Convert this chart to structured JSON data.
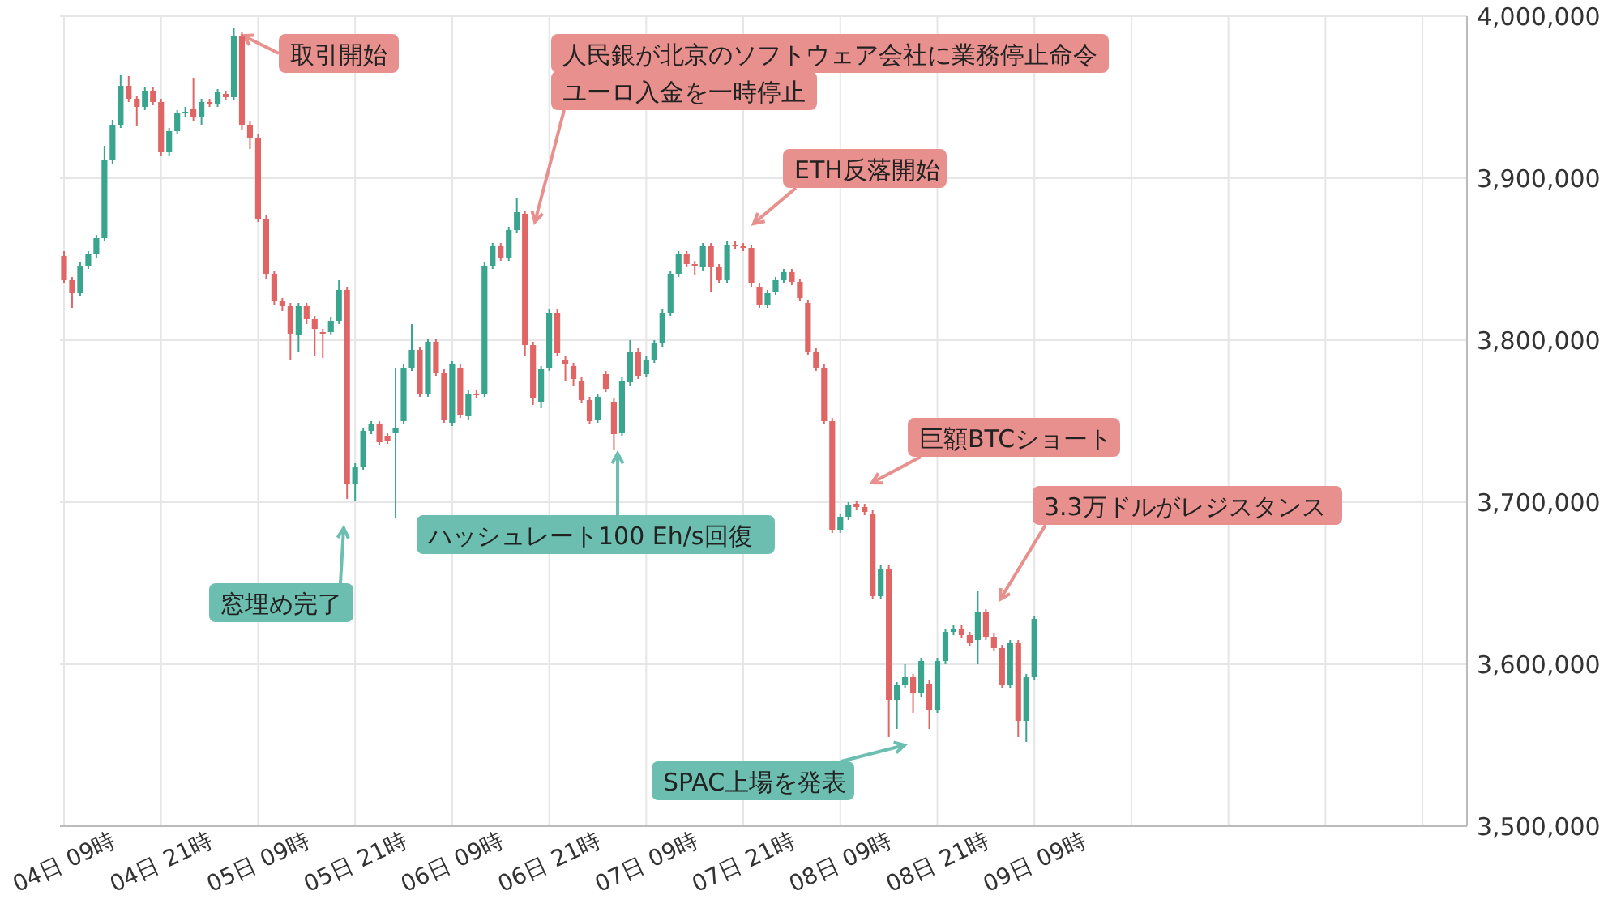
{
  "chart_data": {
    "type": "candlestick",
    "categories": [
      "04日 09時",
      null,
      null,
      null,
      null,
      null,
      null,
      null,
      null,
      null,
      null,
      null,
      "04日 21時",
      null,
      null,
      null,
      null,
      null,
      null,
      null,
      null,
      null,
      null,
      null,
      "05日 09時",
      null,
      null,
      null,
      null,
      null,
      null,
      null,
      null,
      null,
      null,
      null,
      "05日 21時",
      null,
      null,
      null,
      null,
      null,
      null,
      null,
      null,
      null,
      null,
      null,
      "06日 09時",
      null,
      null,
      null,
      null,
      null,
      null,
      null,
      null,
      null,
      null,
      null,
      "06日 21時",
      null,
      null,
      null,
      null,
      null,
      null,
      null,
      null,
      null,
      null,
      null,
      "07日 09時",
      null,
      null,
      null,
      null,
      null,
      null,
      null,
      null,
      null,
      null,
      null,
      "07日 21時",
      null,
      null,
      null,
      null,
      null,
      null,
      null,
      null,
      null,
      null,
      null,
      "08日 09時",
      null,
      null,
      null,
      null,
      null,
      null,
      null,
      null,
      null,
      null,
      null,
      "08日 21時",
      null,
      null,
      null,
      null,
      null,
      null,
      null,
      null,
      null,
      null,
      null,
      "09日 09時",
      null,
      null,
      null,
      null,
      null,
      null,
      null,
      null,
      null,
      null,
      null,
      null,
      null,
      null,
      null,
      null,
      null,
      null,
      null,
      null,
      null,
      null,
      null,
      null,
      null,
      null,
      null,
      null,
      null,
      null,
      null,
      null,
      null,
      null,
      null,
      null,
      null,
      null,
      null,
      null,
      null,
      null,
      null,
      null,
      null,
      null,
      null,
      null,
      null,
      null,
      null,
      null,
      null
    ],
    "ohlc": [
      [
        3852000,
        3855000,
        3835000,
        3837000
      ],
      [
        3837000,
        3839000,
        3820000,
        3829000
      ],
      [
        3829000,
        3848000,
        3827000,
        3846000
      ],
      [
        3846000,
        3855000,
        3844000,
        3853000
      ],
      [
        3853000,
        3865000,
        3851000,
        3863000
      ],
      [
        3863000,
        3920000,
        3861000,
        3911000
      ],
      [
        3911000,
        3936000,
        3909000,
        3933000
      ],
      [
        3933000,
        3964000,
        3931000,
        3957000
      ],
      [
        3957000,
        3963000,
        3947000,
        3949000
      ],
      [
        3949000,
        3951000,
        3932000,
        3944000
      ],
      [
        3944000,
        3956000,
        3942000,
        3954000
      ],
      [
        3954000,
        3956000,
        3945000,
        3947000
      ],
      [
        3947000,
        3949000,
        3914000,
        3916000
      ],
      [
        3916000,
        3931000,
        3914000,
        3929000
      ],
      [
        3929000,
        3942000,
        3927000,
        3940000
      ],
      [
        3940000,
        3944000,
        3938000,
        3941000
      ],
      [
        3943000,
        3962000,
        3935000,
        3938000
      ],
      [
        3938000,
        3949000,
        3933000,
        3947000
      ],
      [
        3947000,
        3949000,
        3944000,
        3946000
      ],
      [
        3946000,
        3955000,
        3944000,
        3953000
      ],
      [
        3952000,
        3954000,
        3948000,
        3950000
      ],
      [
        3950000,
        3993000,
        3948000,
        3988000
      ],
      [
        3988000,
        3990000,
        3930000,
        3933000
      ],
      [
        3933000,
        3935000,
        3918000,
        3925000
      ],
      [
        3925000,
        3927000,
        3873000,
        3875000
      ],
      [
        3875000,
        3877000,
        3838000,
        3841000
      ],
      [
        3841000,
        3843000,
        3822000,
        3824000
      ],
      [
        3824000,
        3826000,
        3818000,
        3821000
      ],
      [
        3821000,
        3823000,
        3788000,
        3804000
      ],
      [
        3803000,
        3823000,
        3793000,
        3821000
      ],
      [
        3821000,
        3823000,
        3810000,
        3813000
      ],
      [
        3813000,
        3815000,
        3790000,
        3807000
      ],
      [
        3805000,
        3807000,
        3789000,
        3804000
      ],
      [
        3805000,
        3814000,
        3803000,
        3812000
      ],
      [
        3812000,
        3837000,
        3810000,
        3831000
      ],
      [
        3831000,
        3833000,
        3702000,
        3711000
      ],
      [
        3711000,
        3724000,
        3701000,
        3722000
      ],
      [
        3722000,
        3746000,
        3720000,
        3744000
      ],
      [
        3744000,
        3750000,
        3742000,
        3748000
      ],
      [
        3748000,
        3750000,
        3735000,
        3737000
      ],
      [
        3741000,
        3743000,
        3736000,
        3738000
      ],
      [
        3743000,
        3783000,
        3690000,
        3746000
      ],
      [
        3750000,
        3785000,
        3748000,
        3783000
      ],
      [
        3783000,
        3810000,
        3781000,
        3794000
      ],
      [
        3794000,
        3796000,
        3765000,
        3767000
      ],
      [
        3767000,
        3801000,
        3765000,
        3799000
      ],
      [
        3799000,
        3801000,
        3778000,
        3780000
      ],
      [
        3780000,
        3782000,
        3749000,
        3751000
      ],
      [
        3749000,
        3787000,
        3747000,
        3785000
      ],
      [
        3783000,
        3785000,
        3752000,
        3754000
      ],
      [
        3753000,
        3769000,
        3751000,
        3767000
      ],
      [
        3767000,
        3769000,
        3764000,
        3766000
      ],
      [
        3767000,
        3848000,
        3765000,
        3846000
      ],
      [
        3846000,
        3860000,
        3844000,
        3858000
      ],
      [
        3858000,
        3860000,
        3849000,
        3851000
      ],
      [
        3851000,
        3870000,
        3849000,
        3868000
      ],
      [
        3868000,
        3888000,
        3866000,
        3879000
      ],
      [
        3878000,
        3880000,
        3790000,
        3797000
      ],
      [
        3797000,
        3799000,
        3760000,
        3764000
      ],
      [
        3762000,
        3784000,
        3758000,
        3782000
      ],
      [
        3783000,
        3819000,
        3781000,
        3817000
      ],
      [
        3817000,
        3819000,
        3790000,
        3792000
      ],
      [
        3788000,
        3790000,
        3775000,
        3785000
      ],
      [
        3784000,
        3786000,
        3772000,
        3776000
      ],
      [
        3775000,
        3777000,
        3761000,
        3763000
      ],
      [
        3763000,
        3765000,
        3748000,
        3750000
      ],
      [
        3751000,
        3767000,
        3749000,
        3765000
      ],
      [
        3779000,
        3781000,
        3768000,
        3770000
      ],
      [
        3762000,
        3764000,
        3732000,
        3742000
      ],
      [
        3743000,
        3777000,
        3741000,
        3775000
      ],
      [
        3774000,
        3800000,
        3772000,
        3793000
      ],
      [
        3793000,
        3795000,
        3776000,
        3778000
      ],
      [
        3779000,
        3790000,
        3777000,
        3788000
      ],
      [
        3788000,
        3800000,
        3786000,
        3798000
      ],
      [
        3798000,
        3819000,
        3796000,
        3817000
      ],
      [
        3817000,
        3843000,
        3815000,
        3841000
      ],
      [
        3841000,
        3855000,
        3839000,
        3853000
      ],
      [
        3853000,
        3855000,
        3845000,
        3847000
      ],
      [
        3847000,
        3849000,
        3840000,
        3846000
      ],
      [
        3845000,
        3860000,
        3843000,
        3858000
      ],
      [
        3858000,
        3860000,
        3830000,
        3845000
      ],
      [
        3845000,
        3847000,
        3835000,
        3837000
      ],
      [
        3837000,
        3861000,
        3835000,
        3859000
      ],
      [
        3859000,
        3861000,
        3856000,
        3858000
      ],
      [
        3858000,
        3860000,
        3855000,
        3857000
      ],
      [
        3857000,
        3859000,
        3833000,
        3835000
      ],
      [
        3833000,
        3835000,
        3820000,
        3822000
      ],
      [
        3822000,
        3831000,
        3820000,
        3829000
      ],
      [
        3830000,
        3839000,
        3828000,
        3837000
      ],
      [
        3837000,
        3844000,
        3835000,
        3842000
      ],
      [
        3842000,
        3844000,
        3834000,
        3836000
      ],
      [
        3836000,
        3838000,
        3824000,
        3826000
      ],
      [
        3823000,
        3825000,
        3791000,
        3793000
      ],
      [
        3793000,
        3795000,
        3781000,
        3783000
      ],
      [
        3783000,
        3785000,
        3748000,
        3750000
      ],
      [
        3750000,
        3752000,
        3681000,
        3683000
      ],
      [
        3683000,
        3693000,
        3681000,
        3691000
      ],
      [
        3691000,
        3700000,
        3689000,
        3698000
      ],
      [
        3699000,
        3701000,
        3695000,
        3697000
      ],
      [
        3697000,
        3699000,
        3692000,
        3694000
      ],
      [
        3693000,
        3695000,
        3640000,
        3642000
      ],
      [
        3642000,
        3661000,
        3640000,
        3659000
      ],
      [
        3659000,
        3661000,
        3555000,
        3578000
      ],
      [
        3578000,
        3589000,
        3560000,
        3587000
      ],
      [
        3587000,
        3600000,
        3585000,
        3592000
      ],
      [
        3592000,
        3594000,
        3570000,
        3582000
      ],
      [
        3582000,
        3604000,
        3580000,
        3602000
      ],
      [
        3588000,
        3590000,
        3560000,
        3572000
      ],
      [
        3572000,
        3604000,
        3570000,
        3602000
      ],
      [
        3602000,
        3622000,
        3600000,
        3620000
      ],
      [
        3620000,
        3624000,
        3618000,
        3622000
      ],
      [
        3622000,
        3624000,
        3616000,
        3618000
      ],
      [
        3618000,
        3620000,
        3611000,
        3613000
      ],
      [
        3615000,
        3645000,
        3600000,
        3632000
      ],
      [
        3632000,
        3634000,
        3615000,
        3617000
      ],
      [
        3617000,
        3619000,
        3608000,
        3610000
      ],
      [
        3610000,
        3612000,
        3585000,
        3587000
      ],
      [
        3587000,
        3615000,
        3585000,
        3613000
      ],
      [
        3613000,
        3615000,
        3555000,
        3565000
      ],
      [
        3565000,
        3594000,
        3552000,
        3592000
      ],
      [
        3592000,
        3630000,
        3590000,
        3628000
      ],
      null,
      null,
      null,
      null,
      null,
      null,
      null,
      null,
      null,
      null,
      null,
      null,
      null,
      null,
      null,
      null,
      null,
      null,
      null,
      null,
      null,
      null,
      null,
      null,
      null,
      null,
      null,
      null,
      null,
      null,
      null,
      null,
      null,
      null,
      null,
      null,
      null,
      null,
      null,
      null,
      null,
      null,
      null,
      null,
      null,
      null,
      null,
      null,
      null,
      null,
      null,
      null,
      null
    ],
    "ylim": [
      3500000,
      4000000
    ],
    "yticks": [
      {
        "value": 3500000,
        "label": "3,500,000"
      },
      {
        "value": 3600000,
        "label": "3,600,000"
      },
      {
        "value": 3700000,
        "label": "3,700,000"
      },
      {
        "value": 3800000,
        "label": "3,800,000"
      },
      {
        "value": 3900000,
        "label": "3,900,000"
      },
      {
        "value": 4000000,
        "label": "4,000,000"
      }
    ],
    "grid": true,
    "annotations": [
      "取引開始",
      "人民銀が北京のソフトウェア会社に業務停止命令",
      "ユーロ入金を一時停止",
      "ETH反落開始",
      "巨額BTCショート",
      "3.3万ドルがレジスタンス",
      "窓埋め完了",
      "ハッシュレート100 Eh/s回復",
      "SPAC上場を発表"
    ]
  }
}
